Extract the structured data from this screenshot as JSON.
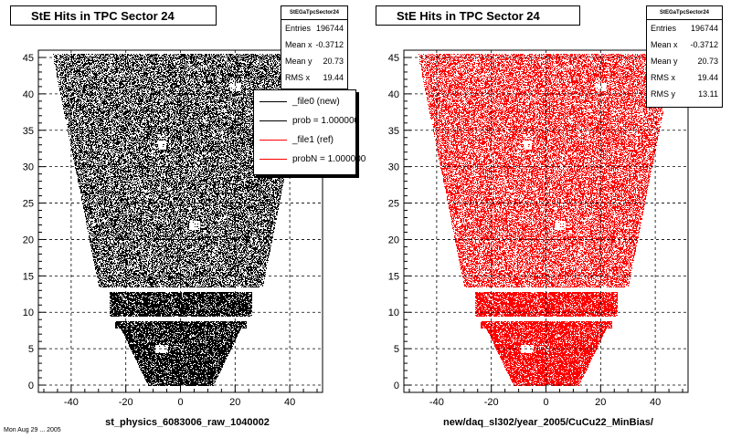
{
  "chart_data": [
    {
      "type": "scatter",
      "title": "StE Hits in TPC Sector 24",
      "xlabel": "st_physics_6083006_raw_1040002",
      "ylabel": "",
      "xlim": [
        -52,
        52
      ],
      "ylim": [
        -1,
        46
      ],
      "x_ticks": [
        -40,
        -20,
        0,
        20,
        40
      ],
      "y_ticks": [
        0,
        5,
        10,
        15,
        20,
        25,
        30,
        35,
        40,
        45
      ],
      "grid": true,
      "color": "#000000",
      "stats": {
        "name": "StEGaTpcSector24",
        "rows": [
          {
            "label": "Entries",
            "value": "196744"
          },
          {
            "label": "Mean x",
            "value": "-0.3712"
          },
          {
            "label": "Mean y",
            "value": "20.73"
          },
          {
            "label": "RMS x",
            "value": "19.44"
          }
        ]
      },
      "legend": {
        "placement": "top-right",
        "entries": [
          {
            "label": "_file0 (new)",
            "color": "#000000"
          },
          {
            "label": "prob = 1.000000",
            "color": "#000000"
          },
          {
            "label": "_file1 (ref)",
            "color": "#ff0000"
          },
          {
            "label": "probN = 1.000000",
            "color": "#ff0000"
          }
        ]
      }
    },
    {
      "type": "scatter",
      "title": "StE Hits in TPC Sector 24",
      "xlabel": "new/daq_sl302/year_2005/CuCu22_MinBias/",
      "ylabel": "",
      "xlim": [
        -52,
        52
      ],
      "ylim": [
        -1,
        46
      ],
      "x_ticks": [
        -40,
        -20,
        0,
        20,
        40
      ],
      "y_ticks": [
        0,
        5,
        10,
        15,
        20,
        25,
        30,
        35,
        40,
        45
      ],
      "grid": true,
      "color": "#ff0000",
      "stats": {
        "name": "StEGaTpcSector24",
        "rows": [
          {
            "label": "Entries",
            "value": "196744"
          },
          {
            "label": "Mean x",
            "value": "-0.3712"
          },
          {
            "label": "Mean y",
            "value": "20.73"
          },
          {
            "label": "RMS x",
            "value": "19.44"
          },
          {
            "label": "RMS y",
            "value": "13.11"
          }
        ]
      }
    }
  ],
  "footer": "Mon Aug 29 ... 2005"
}
